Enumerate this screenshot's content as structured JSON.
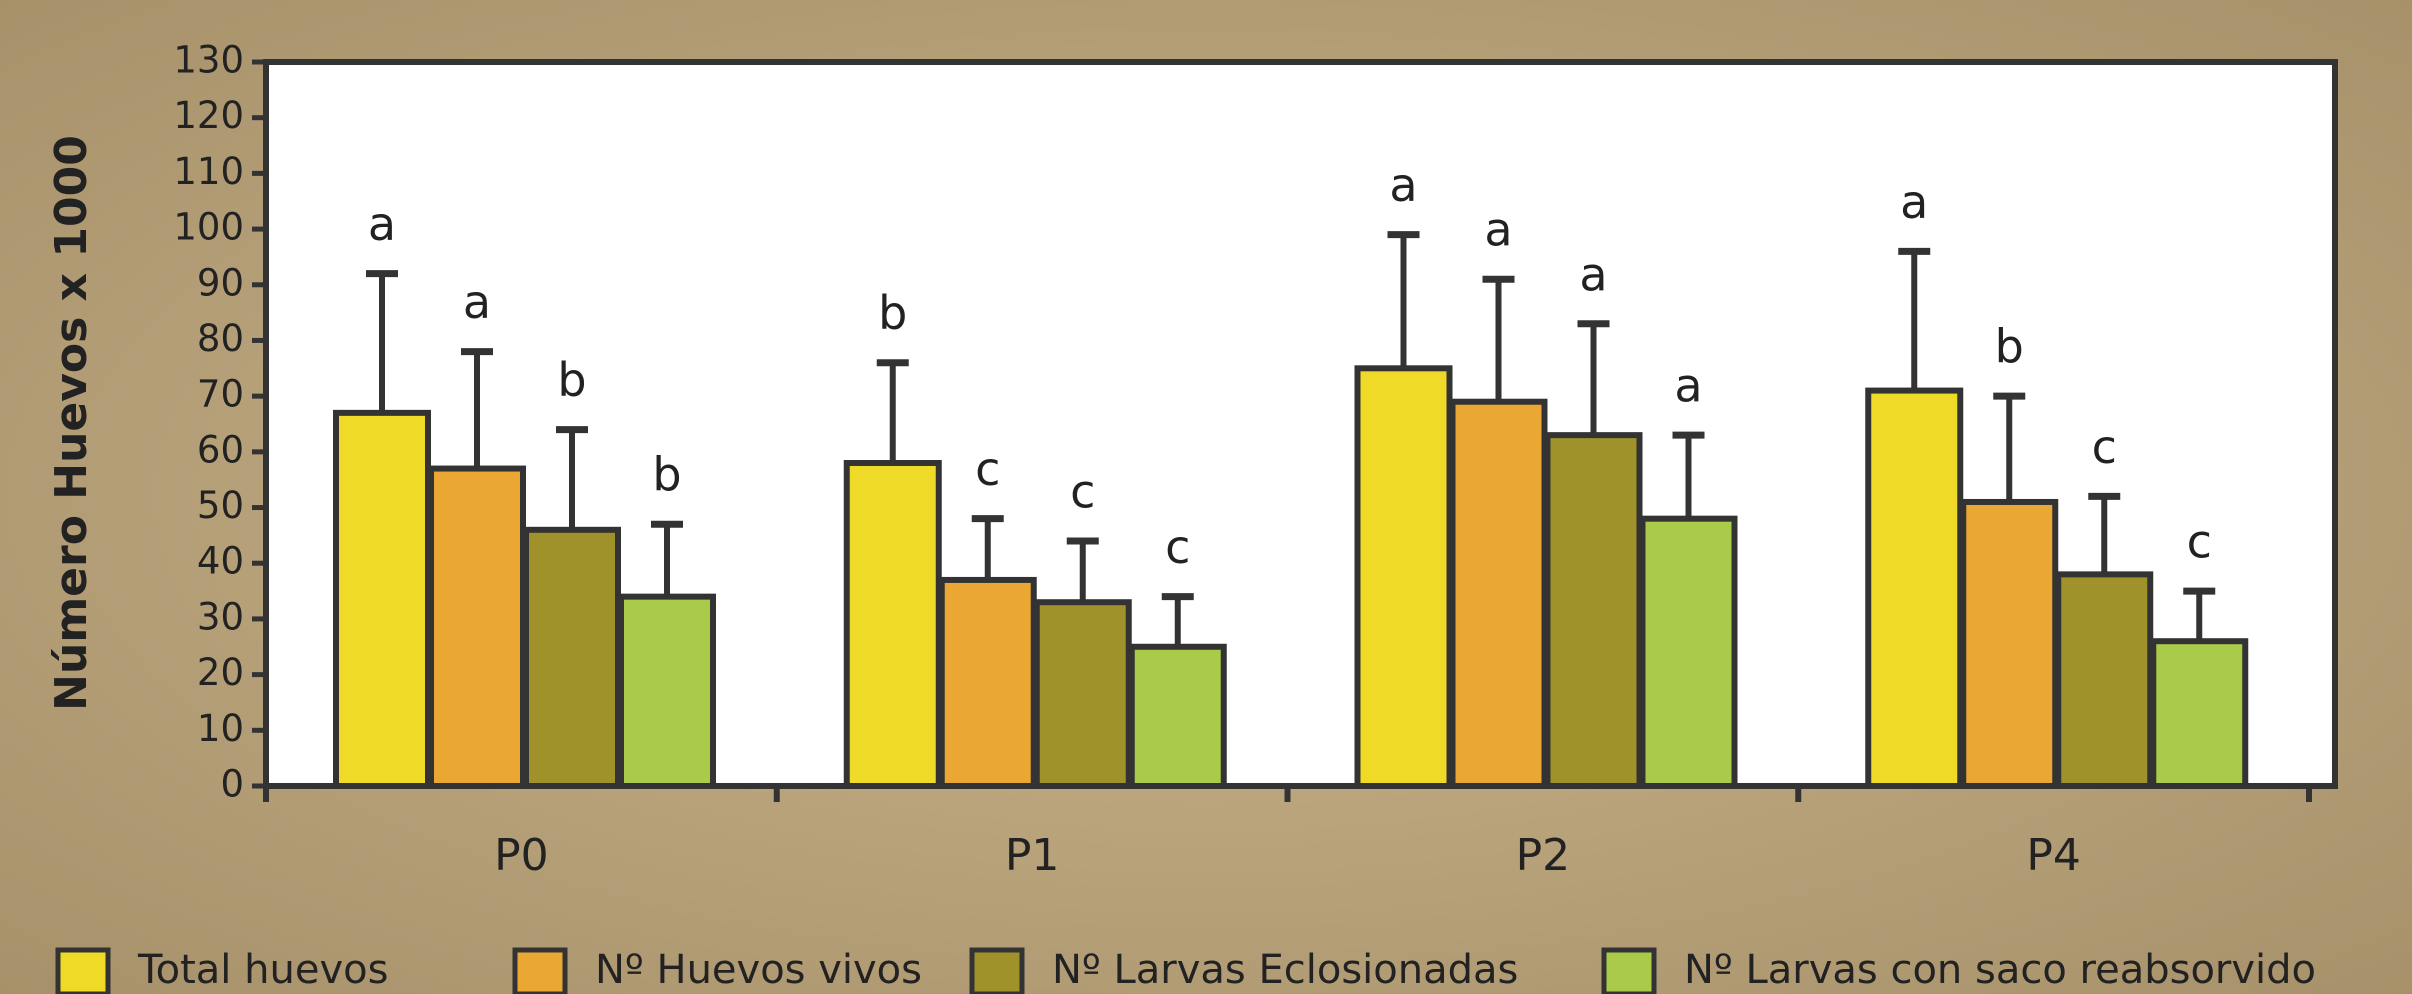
{
  "chart_data": {
    "type": "bar",
    "y_label": "Número Huevos x 1000",
    "categories": [
      "P0",
      "P1",
      "P2",
      "P4"
    ],
    "ylim": [
      0,
      130
    ],
    "yticks": [
      0,
      10,
      20,
      30,
      40,
      50,
      60,
      70,
      80,
      90,
      100,
      110,
      120,
      130
    ],
    "series": [
      {
        "name": "Total huevos",
        "color": "#efdb27",
        "values": [
          67,
          58,
          75,
          71
        ],
        "errors": [
          25,
          18,
          24,
          25
        ],
        "significance": [
          "a",
          "b",
          "a",
          "a"
        ]
      },
      {
        "name": "Nº Huevos vivos",
        "color": "#eba733",
        "values": [
          57,
          37,
          69,
          51
        ],
        "errors": [
          21,
          11,
          22,
          19
        ],
        "significance": [
          "a",
          "c",
          "a",
          "b"
        ]
      },
      {
        "name": "Nº Larvas Eclosionadas",
        "color": "#a0922a",
        "values": [
          46,
          33,
          63,
          38
        ],
        "errors": [
          18,
          11,
          20,
          14
        ],
        "significance": [
          "b",
          "c",
          "a",
          "c"
        ]
      },
      {
        "name": "Nº Larvas con saco reabsorvido",
        "color": "#a9cb49",
        "values": [
          34,
          25,
          48,
          26
        ],
        "errors": [
          13,
          9,
          15,
          9
        ],
        "significance": [
          "b",
          "c",
          "a",
          "c"
        ]
      }
    ]
  }
}
